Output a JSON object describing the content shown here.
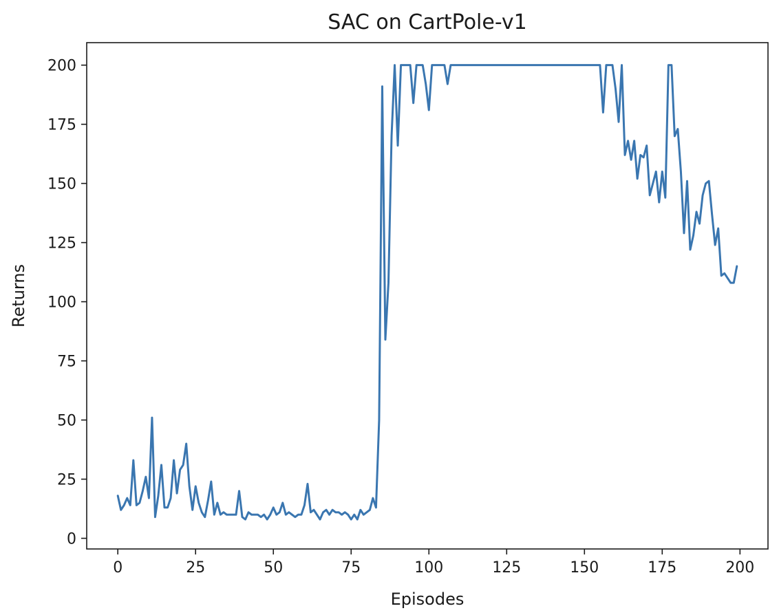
{
  "chart_data": {
    "type": "line",
    "title": "SAC on CartPole-v1",
    "xlabel": "Episodes",
    "ylabel": "Returns",
    "xlim": [
      -10,
      209
    ],
    "ylim": [
      -4.5,
      209.5
    ],
    "xticks": [
      0,
      25,
      50,
      75,
      100,
      125,
      150,
      175,
      200
    ],
    "yticks": [
      0,
      25,
      50,
      75,
      100,
      125,
      150,
      175,
      200
    ],
    "grid": false,
    "line_color": "#3a76b0",
    "series": [
      {
        "x": [
          0,
          1,
          2,
          3,
          4,
          5,
          6,
          7,
          8,
          9,
          10,
          11,
          12,
          13,
          14,
          15,
          16,
          17,
          18,
          19,
          20,
          21,
          22,
          23,
          24,
          25,
          26,
          27,
          28,
          29,
          30,
          31,
          32,
          33,
          34,
          35,
          36,
          37,
          38,
          39,
          40,
          41,
          42,
          43,
          44,
          45,
          46,
          47,
          48,
          49,
          50,
          51,
          52,
          53,
          54,
          55,
          56,
          57,
          58,
          59,
          60,
          61,
          62,
          63,
          64,
          65,
          66,
          67,
          68,
          69,
          70,
          71,
          72,
          73,
          74,
          75,
          76,
          77,
          78,
          79,
          80,
          81,
          82,
          83,
          84,
          85,
          86,
          87,
          88,
          89,
          90,
          91,
          92,
          93,
          94,
          95,
          96,
          97,
          98,
          99,
          100,
          101,
          102,
          103,
          104,
          105,
          106,
          107,
          108,
          109,
          110,
          111,
          112,
          113,
          114,
          115,
          116,
          117,
          118,
          119,
          120,
          121,
          122,
          123,
          124,
          125,
          126,
          127,
          128,
          129,
          130,
          131,
          132,
          133,
          134,
          135,
          136,
          137,
          138,
          139,
          140,
          141,
          142,
          143,
          144,
          145,
          146,
          147,
          148,
          149,
          150,
          151,
          152,
          153,
          154,
          155,
          156,
          157,
          158,
          159,
          160,
          161,
          162,
          163,
          164,
          165,
          166,
          167,
          168,
          169,
          170,
          171,
          172,
          173,
          174,
          175,
          176,
          177,
          178,
          179,
          180,
          181,
          182,
          183,
          184,
          185,
          186,
          187,
          188,
          189,
          190,
          191,
          192,
          193,
          194,
          195,
          196,
          197,
          198,
          199
        ],
        "y": [
          18,
          12,
          14,
          17,
          14,
          33,
          14,
          15,
          20,
          26,
          17,
          51,
          9,
          18,
          31,
          13,
          13,
          17,
          33,
          19,
          29,
          31,
          40,
          22,
          12,
          22,
          15,
          11,
          9,
          16,
          24,
          10,
          15,
          10,
          11,
          10,
          10,
          10,
          10,
          20,
          9,
          8,
          11,
          10,
          10,
          10,
          9,
          10,
          8,
          10,
          13,
          10,
          11,
          15,
          10,
          11,
          10,
          9,
          10,
          10,
          14,
          23,
          11,
          12,
          10,
          8,
          11,
          12,
          10,
          12,
          11,
          11,
          10,
          11,
          10,
          8,
          10,
          8,
          12,
          10,
          11,
          12,
          17,
          13,
          50,
          191,
          84,
          108,
          170,
          200,
          166,
          200,
          200,
          200,
          200,
          184,
          200,
          200,
          200,
          192,
          181,
          200,
          200,
          200,
          200,
          200,
          192,
          200,
          200,
          200,
          200,
          200,
          200,
          200,
          200,
          200,
          200,
          200,
          200,
          200,
          200,
          200,
          200,
          200,
          200,
          200,
          200,
          200,
          200,
          200,
          200,
          200,
          200,
          200,
          200,
          200,
          200,
          200,
          200,
          200,
          200,
          200,
          200,
          200,
          200,
          200,
          200,
          200,
          200,
          200,
          200,
          200,
          200,
          200,
          200,
          200,
          180,
          200,
          200,
          200,
          190,
          176,
          200,
          162,
          168,
          160,
          168,
          152,
          162,
          161,
          166,
          145,
          150,
          155,
          142,
          155,
          144,
          200,
          200,
          170,
          173,
          155,
          129,
          151,
          122,
          128,
          138,
          133,
          145,
          150,
          151,
          137,
          124,
          131,
          111,
          112,
          110,
          108,
          108,
          115
        ]
      }
    ]
  }
}
